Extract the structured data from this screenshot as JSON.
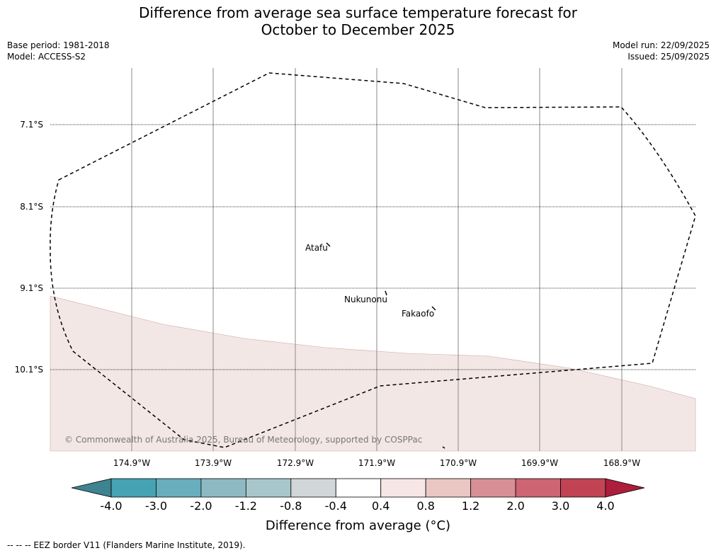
{
  "title": {
    "line1": "Difference from average sea surface temperature forecast for",
    "line2": "October to December 2025"
  },
  "meta": {
    "base_period": "Base period: 1981-2018",
    "model": "Model: ACCESS-S2",
    "model_run": "Model run: 22/09/2025",
    "issued": "Issued: 25/09/2025"
  },
  "latitudes": [
    "7.1°S",
    "8.1°S",
    "9.1°S",
    "10.1°S"
  ],
  "longitudes": [
    "174.9°W",
    "173.9°W",
    "172.9°W",
    "171.9°W",
    "170.9°W",
    "169.9°W",
    "168.9°W"
  ],
  "places": {
    "atafu": "Atafu",
    "nukunonu": "Nukunonu",
    "fakaofo": "Fakaofo"
  },
  "copyright": "© Commonwealth of Australia 2025, Bureau of Meteorology, supported by COSPPac",
  "colorbar": {
    "ticks": [
      "-4.0",
      "-3.0",
      "-2.0",
      "-1.2",
      "-0.8",
      "-0.4",
      "0.4",
      "0.8",
      "1.2",
      "2.0",
      "3.0",
      "4.0"
    ],
    "colors": [
      "#3d8490",
      "#46a3b3",
      "#68aebd",
      "#8db9c2",
      "#a8c7cc",
      "#d1d7d8",
      "#ffffff",
      "#f6e7e6",
      "#eac7c3",
      "#d88f96",
      "#cd6572",
      "#c24454",
      "#ac1e3b"
    ],
    "label": "Difference from average (°C)"
  },
  "map": {
    "shaded_class_color": "#f3e7e6",
    "shaded_class_range": "0.4 to 0.8"
  },
  "footnote": "-- -- -- EEZ border V11 (Flanders Marine Institute, 2019)."
}
